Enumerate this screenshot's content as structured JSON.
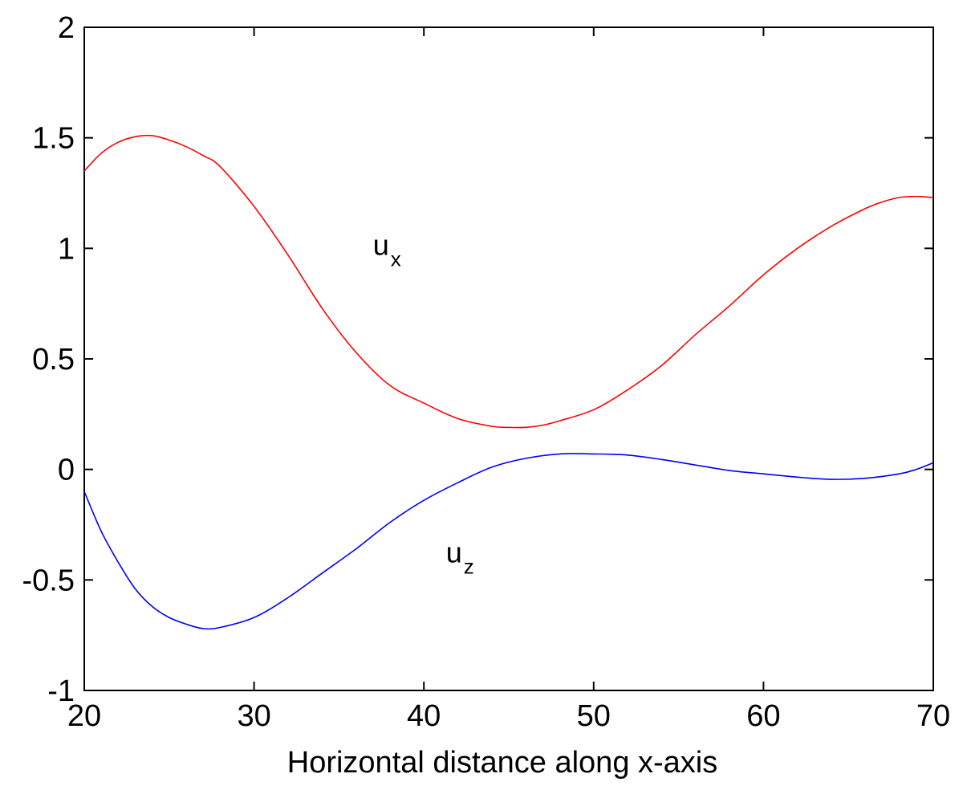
{
  "chart_data": {
    "type": "line",
    "title": "",
    "xlabel": "Horizontal distance along x-axis",
    "ylabel": "",
    "xlim": [
      20,
      70
    ],
    "ylim": [
      -1,
      2
    ],
    "xticks": [
      20,
      30,
      40,
      50,
      60,
      70
    ],
    "yticks": [
      -1,
      -0.5,
      0,
      0.5,
      1,
      1.5,
      2
    ],
    "grid": false,
    "series": [
      {
        "key": "ux",
        "name": "u",
        "subscript": "x",
        "color": "#ff0000",
        "x": [
          20,
          21,
          22,
          23,
          24,
          25,
          26,
          27,
          28,
          30,
          32,
          34,
          36,
          38,
          40,
          42,
          44,
          45,
          46,
          47,
          48,
          50,
          52,
          54,
          56,
          58,
          60,
          62,
          64,
          66,
          67,
          68,
          69,
          70
        ],
        "y": [
          1.35,
          1.43,
          1.48,
          1.505,
          1.51,
          1.49,
          1.46,
          1.42,
          1.37,
          1.19,
          0.97,
          0.73,
          0.53,
          0.38,
          0.3,
          0.23,
          0.195,
          0.19,
          0.19,
          0.2,
          0.22,
          0.27,
          0.36,
          0.47,
          0.61,
          0.74,
          0.88,
          1.0,
          1.1,
          1.18,
          1.21,
          1.23,
          1.235,
          1.23
        ]
      },
      {
        "key": "uz",
        "name": "u",
        "subscript": "z",
        "color": "#0000ff",
        "x": [
          20,
          21,
          22,
          23,
          24,
          25,
          26,
          27,
          28,
          30,
          32,
          34,
          36,
          38,
          40,
          42,
          44,
          46,
          48,
          50,
          52,
          54,
          56,
          58,
          60,
          62,
          64,
          66,
          68,
          69,
          70
        ],
        "y": [
          -0.1,
          -0.28,
          -0.42,
          -0.54,
          -0.62,
          -0.67,
          -0.7,
          -0.72,
          -0.715,
          -0.67,
          -0.58,
          -0.47,
          -0.36,
          -0.24,
          -0.14,
          -0.06,
          0.01,
          0.05,
          0.07,
          0.07,
          0.065,
          0.045,
          0.02,
          -0.005,
          -0.02,
          -0.035,
          -0.045,
          -0.04,
          -0.02,
          0.0,
          0.03
        ]
      }
    ],
    "annotations": [
      {
        "series": "ux",
        "text": "u",
        "sub": "x",
        "x": 37,
        "y": 0.97
      },
      {
        "series": "uz",
        "text": "u",
        "sub": "z",
        "x": 41.3,
        "y": -0.42
      }
    ]
  }
}
